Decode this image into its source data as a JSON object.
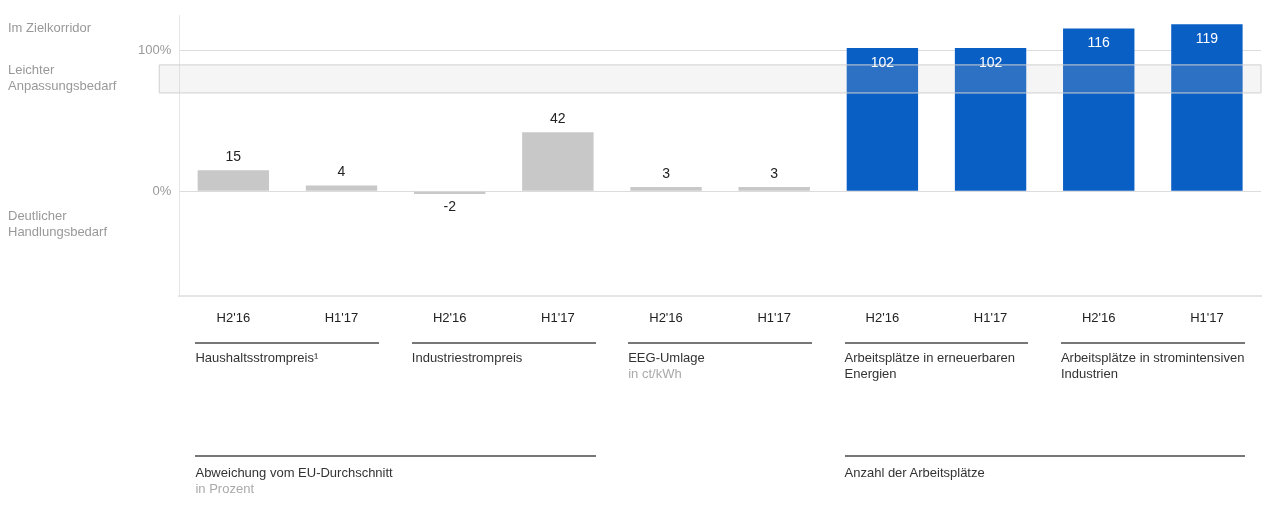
{
  "chart_data": {
    "type": "bar",
    "categories": [
      "H2'16",
      "H1'17",
      "H2'16",
      "H1'17",
      "H2'16",
      "H1'17",
      "H2'16",
      "H1'17",
      "H2'16",
      "H1'17"
    ],
    "values": [
      15,
      4,
      -2,
      42,
      3,
      3,
      102,
      102,
      116,
      119
    ],
    "colors": [
      "#c8c8c8",
      "#c8c8c8",
      "#c8c8c8",
      "#c8c8c8",
      "#c8c8c8",
      "#c8c8c8",
      "#0a5fc4",
      "#0a5fc4",
      "#0a5fc4",
      "#0a5fc4"
    ],
    "ylim": [
      -75,
      125
    ],
    "yticks": [
      {
        "value": 0,
        "label": "0%"
      },
      {
        "value": 100,
        "label": "100%"
      }
    ],
    "grid": "y",
    "bands": [
      {
        "axis": "y",
        "from": 70,
        "to": 90
      }
    ],
    "data_labels": true,
    "annotations": [
      "Im Zielkorridor",
      "Leichter Anpassungsbedarf",
      "Deutlicher Handlungsbedarf",
      "Haushaltsstrompreis¹",
      "Industriestrompreis",
      "EEG-Umlage",
      "in ct/kWh",
      "Arbeitsplätze in erneuerbaren Energien",
      "Arbeitsplätze in stromintensiven Industrien",
      "Abweichung vom EU-Durchschnitt",
      "in Prozent",
      "Anzahl der Arbeitsplätze"
    ]
  }
}
